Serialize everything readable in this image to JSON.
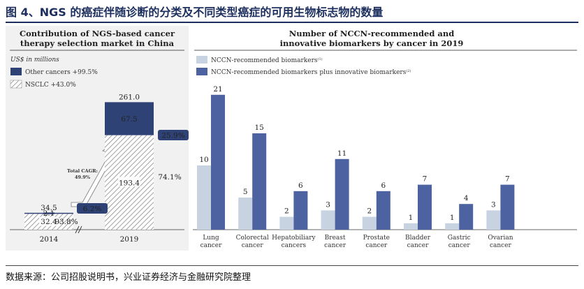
{
  "figure_title": "图 4、NGS 的癌症伴随诊断的分类及不同类型癌症的可用生物标志物的数量",
  "source": "数据来源：公司招股说明书，兴业证券经济与金融研究院整理",
  "colors": {
    "dark": "#2f4275",
    "blue": "#4d62a0",
    "light": "#c8d3e2",
    "hatch": "#9a9a9a",
    "title": "#1c2f5e"
  },
  "chart_data": [
    {
      "type": "bar",
      "stacked": true,
      "title_lines": [
        "Contribution of NGS-based cancer",
        "therapy selection market in China"
      ],
      "unit_note": "US$ in millions",
      "categories": [
        "2014",
        "2019"
      ],
      "series": [
        {
          "name": "Other cancers +99.5%",
          "values": [
            2.1,
            67.5
          ]
        },
        {
          "name": "NSCLC +43.0%",
          "values": [
            32.4,
            193.4
          ]
        }
      ],
      "totals": [
        "34.5",
        "261.0"
      ],
      "share_badges": [
        "6.2%",
        "25.9%"
      ],
      "share_labels": [
        "93.8%",
        "74.1%"
      ],
      "cagr_label": [
        "Total CAGR:",
        "49.9%"
      ]
    },
    {
      "type": "bar",
      "title_lines": [
        "Number of NCCN-recommended and",
        "innovative biomarkers by cancer in 2019"
      ],
      "legend": [
        "NCCN-recommended biomarkers",
        "NCCN-recommended biomarkers plus innovative biomarkers"
      ],
      "legend_sups": [
        "(1)",
        "(2)"
      ],
      "categories": [
        [
          "Lung",
          "cancer"
        ],
        [
          "Colorectal",
          "cancer"
        ],
        [
          "Hepatobiliary",
          "cancers"
        ],
        [
          "Breast",
          "cancer"
        ],
        [
          "Prostate",
          "cancer"
        ],
        [
          "Bladder",
          "cancer"
        ],
        [
          "Gastric",
          "cancer"
        ],
        [
          "Ovarian",
          "cancer"
        ]
      ],
      "series": [
        {
          "name": "NCCN-recommended biomarkers",
          "values": [
            10,
            5,
            2,
            3,
            2,
            1,
            1,
            3
          ]
        },
        {
          "name": "NCCN-recommended biomarkers plus innovative biomarkers",
          "values": [
            21,
            15,
            6,
            11,
            6,
            7,
            4,
            7
          ]
        }
      ]
    }
  ]
}
